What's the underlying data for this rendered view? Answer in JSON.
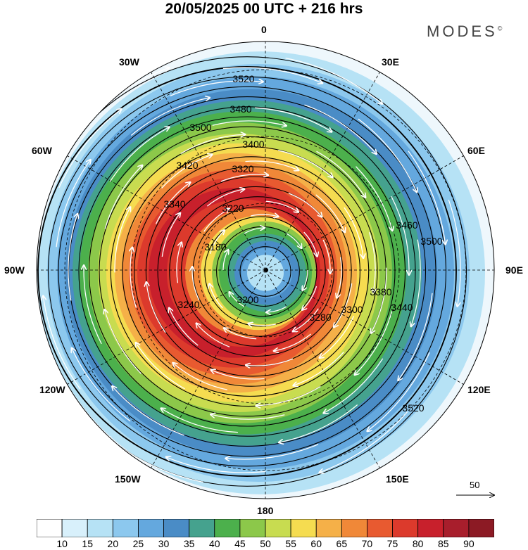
{
  "header": {
    "title": "20/05/2025  00 UTC  + 216 hrs",
    "brand": "MODES",
    "brand_mark": "©"
  },
  "map": {
    "projection": "south-polar-stereographic",
    "longitude_labels": [
      "0",
      "30E",
      "60E",
      "90E",
      "120E",
      "150E",
      "180",
      "150W",
      "120W",
      "90W",
      "60W",
      "30W"
    ],
    "contour_labels": [
      "3520",
      "3480",
      "3500",
      "3400",
      "3420",
      "3320",
      "3340",
      "3220",
      "3180",
      "3200",
      "3240",
      "3280",
      "3300",
      "3380",
      "3440",
      "3460",
      "3500",
      "3520"
    ],
    "reference_vector": {
      "value": "50"
    }
  },
  "colorbar": {
    "labels": [
      "10",
      "15",
      "20",
      "25",
      "30",
      "35",
      "40",
      "45",
      "50",
      "55",
      "60",
      "65",
      "70",
      "75",
      "80",
      "85",
      "90"
    ],
    "colors": [
      "#ffffff",
      "#d8f0fb",
      "#b6e2f5",
      "#8cc8ee",
      "#64a8de",
      "#4a8cc6",
      "#45a28e",
      "#4cb04c",
      "#8cc84a",
      "#c8dc50",
      "#f5dc50",
      "#f5b048",
      "#f08838",
      "#e85a30",
      "#dc3a2c",
      "#c8202c",
      "#a81e2c",
      "#8c1a24"
    ]
  }
}
